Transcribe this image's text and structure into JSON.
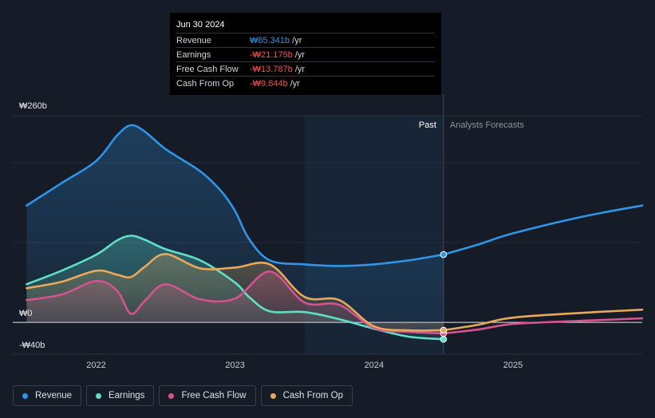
{
  "chart_data": {
    "type": "area",
    "y_axis": {
      "ticks": [
        {
          "value": 260,
          "label": "₩260b"
        },
        {
          "value": 0,
          "label": "₩0"
        },
        {
          "value": -40,
          "label": "-₩40b"
        }
      ],
      "ylim": [
        -40,
        260
      ]
    },
    "x_axis": {
      "xlim": [
        2021.4,
        2025.93
      ],
      "ticks": [
        {
          "value": 2022,
          "label": "2022"
        },
        {
          "value": 2023,
          "label": "2023"
        },
        {
          "value": 2024,
          "label": "2024"
        },
        {
          "value": 2025,
          "label": "2025"
        }
      ]
    },
    "regions": {
      "past_label": "Past",
      "forecast_label": "Analysts Forecasts",
      "highlight_start": 2023.5,
      "divider_x": 2024.5
    },
    "series": [
      {
        "name": "Revenue",
        "color": "#2f95e8",
        "points": [
          [
            2021.5,
            147
          ],
          [
            2021.75,
            175
          ],
          [
            2022.0,
            203
          ],
          [
            2022.15,
            235
          ],
          [
            2022.25,
            248
          ],
          [
            2022.35,
            240
          ],
          [
            2022.5,
            218
          ],
          [
            2022.75,
            190
          ],
          [
            2022.9,
            165
          ],
          [
            2023.0,
            140
          ],
          [
            2023.1,
            105
          ],
          [
            2023.25,
            78
          ],
          [
            2023.5,
            73
          ],
          [
            2023.75,
            71
          ],
          [
            2024.0,
            73
          ],
          [
            2024.25,
            78
          ],
          [
            2024.5,
            85.341
          ]
        ],
        "forecast": [
          [
            2024.5,
            85.341
          ],
          [
            2024.75,
            98
          ],
          [
            2025.0,
            112
          ],
          [
            2025.5,
            133
          ],
          [
            2025.93,
            147
          ]
        ]
      },
      {
        "name": "Earnings",
        "color": "#5fe0c6",
        "points": [
          [
            2021.5,
            48
          ],
          [
            2021.75,
            65
          ],
          [
            2022.0,
            85
          ],
          [
            2022.15,
            103
          ],
          [
            2022.25,
            109
          ],
          [
            2022.35,
            104
          ],
          [
            2022.5,
            92
          ],
          [
            2022.75,
            78
          ],
          [
            2023.0,
            50
          ],
          [
            2023.1,
            32
          ],
          [
            2023.25,
            14
          ],
          [
            2023.5,
            13
          ],
          [
            2023.75,
            4
          ],
          [
            2024.0,
            -8
          ],
          [
            2024.25,
            -18
          ],
          [
            2024.5,
            -21.175
          ]
        ]
      },
      {
        "name": "Free Cash Flow",
        "color": "#d5538f",
        "points": [
          [
            2021.5,
            28
          ],
          [
            2021.75,
            35
          ],
          [
            2022.0,
            52
          ],
          [
            2022.15,
            40
          ],
          [
            2022.25,
            11
          ],
          [
            2022.35,
            27
          ],
          [
            2022.5,
            48
          ],
          [
            2022.75,
            29
          ],
          [
            2023.0,
            30
          ],
          [
            2023.25,
            64
          ],
          [
            2023.5,
            25
          ],
          [
            2023.75,
            22
          ],
          [
            2024.0,
            -7
          ],
          [
            2024.25,
            -12
          ],
          [
            2024.5,
            -13.787
          ]
        ],
        "forecast": [
          [
            2024.5,
            -13.787
          ],
          [
            2024.75,
            -9
          ],
          [
            2025.0,
            -2
          ],
          [
            2025.5,
            2
          ],
          [
            2025.93,
            5
          ]
        ]
      },
      {
        "name": "Cash From Op",
        "color": "#e8a95a",
        "points": [
          [
            2021.5,
            43
          ],
          [
            2021.75,
            51
          ],
          [
            2022.0,
            65
          ],
          [
            2022.15,
            60
          ],
          [
            2022.25,
            57
          ],
          [
            2022.35,
            70
          ],
          [
            2022.5,
            86
          ],
          [
            2022.75,
            68
          ],
          [
            2023.0,
            69
          ],
          [
            2023.25,
            73
          ],
          [
            2023.5,
            32
          ],
          [
            2023.75,
            28
          ],
          [
            2024.0,
            -5
          ],
          [
            2024.25,
            -10
          ],
          [
            2024.5,
            -9.844
          ]
        ],
        "forecast": [
          [
            2024.5,
            -9.844
          ],
          [
            2024.75,
            -3
          ],
          [
            2025.0,
            6
          ],
          [
            2025.5,
            12
          ],
          [
            2025.93,
            16
          ]
        ]
      }
    ]
  },
  "tooltip": {
    "date": "Jun 30 2024",
    "rows": [
      {
        "label": "Revenue",
        "value": "₩85.341b",
        "unit": "/yr",
        "color": "#2f95e8"
      },
      {
        "label": "Earnings",
        "value": "-₩21.175b",
        "unit": "/yr",
        "color": "#ff4d4d"
      },
      {
        "label": "Free Cash Flow",
        "value": "-₩13.787b",
        "unit": "/yr",
        "color": "#ff4d4d"
      },
      {
        "label": "Cash From Op",
        "value": "-₩9.844b",
        "unit": "/yr",
        "color": "#ff4d4d"
      }
    ]
  },
  "legend": [
    {
      "label": "Revenue",
      "color": "#2f95e8"
    },
    {
      "label": "Earnings",
      "color": "#5fe0c6"
    },
    {
      "label": "Free Cash Flow",
      "color": "#d5538f"
    },
    {
      "label": "Cash From Op",
      "color": "#e8a95a"
    }
  ]
}
